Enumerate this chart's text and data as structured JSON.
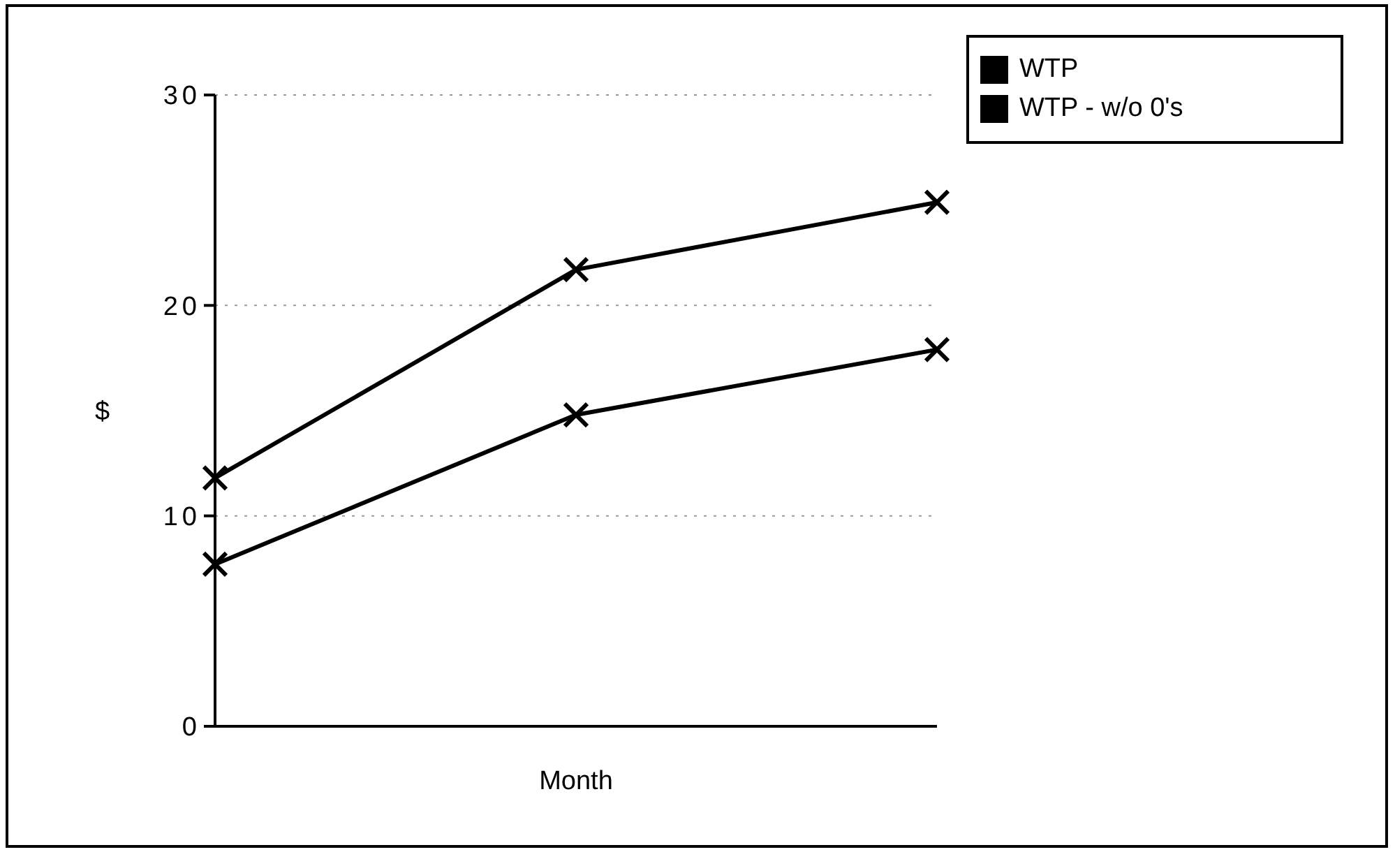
{
  "chart_data": {
    "type": "line",
    "ylabel": "$",
    "xlabel": "Month",
    "categories": [
      null,
      null,
      null
    ],
    "series": [
      {
        "name": "WTP",
        "color": "#000000",
        "values": [
          7.7,
          14.8,
          17.9
        ]
      },
      {
        "name": "WTP - w/o 0's",
        "color": "#000000",
        "values": [
          11.8,
          21.7,
          24.9
        ]
      }
    ],
    "ylim": [
      0,
      30
    ],
    "yticks": [
      0,
      10,
      20,
      30
    ],
    "grid": "y",
    "legend": "top right",
    "marker": "cross",
    "line_style": "solid"
  }
}
